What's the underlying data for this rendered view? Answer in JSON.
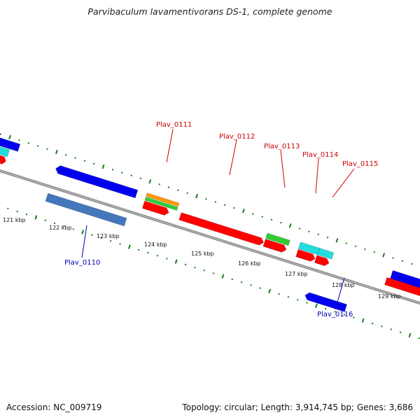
{
  "title": "Parvibaculum lavamentivorans DS-1, complete genome",
  "footer": {
    "accession": "Accession: NC_009719",
    "summary": "Topology: circular; Length: 3,914,745 bp; Genes: 3,686"
  },
  "scale": {
    "tick_labels": [
      "121 kbp",
      "122 kbp",
      "123 kbp",
      "124 kbp",
      "125 kbp",
      "126 kbp",
      "127 kbp",
      "128 kbp",
      "129 kbp"
    ]
  },
  "gene_labels": {
    "plav_0110": "Plav_0110",
    "plav_0111": "Plav_0111",
    "plav_0112": "Plav_0112",
    "plav_0113": "Plav_0113",
    "plav_0114": "Plav_0114",
    "plav_0115": "Plav_0115",
    "plav_0116": "Plav_0116"
  },
  "colors": {
    "forward_label": "#cc0000",
    "reverse_label": "#0000bb",
    "tick": "#1a7a1a",
    "backbone": "#8c8c8c",
    "red": "#ff0000",
    "blue": "#0000ee",
    "cyan": "#22dddd",
    "green": "#33cc33",
    "orange": "#ff9900",
    "steel": "#4477bb"
  }
}
